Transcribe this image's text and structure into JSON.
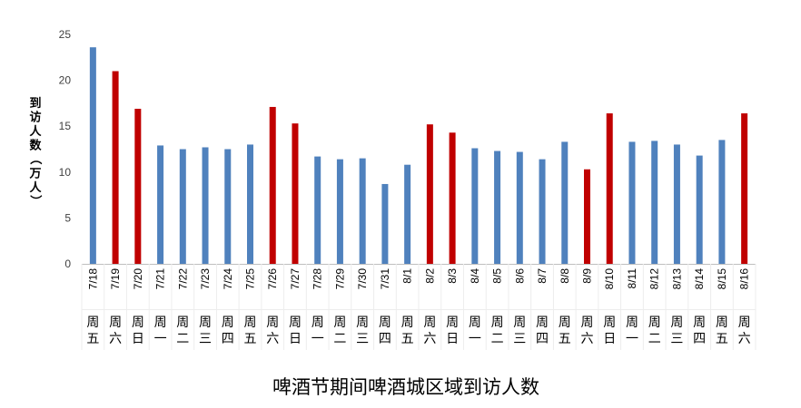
{
  "chart_data": {
    "type": "bar",
    "title": "啤酒节期间啤酒城区域到访人数",
    "ylabel": "到访人数（万人）",
    "xlabel": "",
    "ylim": [
      0,
      25
    ],
    "yticks": [
      0,
      5,
      10,
      15,
      20,
      25
    ],
    "grid": false,
    "legend": "none",
    "colors": {
      "weekday": "#4F81BD",
      "weekend": "#C00000"
    },
    "categories": [
      "7/18",
      "7/19",
      "7/20",
      "7/21",
      "7/22",
      "7/23",
      "7/24",
      "7/25",
      "7/26",
      "7/27",
      "7/28",
      "7/29",
      "7/30",
      "7/31",
      "8/1",
      "8/2",
      "8/3",
      "8/4",
      "8/5",
      "8/6",
      "8/7",
      "8/8",
      "8/9",
      "8/10",
      "8/11",
      "8/12",
      "8/13",
      "8/14",
      "8/15",
      "8/16"
    ],
    "weekdays": [
      [
        "周",
        "五"
      ],
      [
        "周",
        "六"
      ],
      [
        "周",
        "日"
      ],
      [
        "周",
        "一"
      ],
      [
        "周",
        "二"
      ],
      [
        "周",
        "三"
      ],
      [
        "周",
        "四"
      ],
      [
        "周",
        "五"
      ],
      [
        "周",
        "六"
      ],
      [
        "周",
        "日"
      ],
      [
        "周",
        "一"
      ],
      [
        "周",
        "二"
      ],
      [
        "周",
        "三"
      ],
      [
        "周",
        "四"
      ],
      [
        "周",
        "五"
      ],
      [
        "周",
        "六"
      ],
      [
        "周",
        "日"
      ],
      [
        "周",
        "一"
      ],
      [
        "周",
        "二"
      ],
      [
        "周",
        "三"
      ],
      [
        "周",
        "四"
      ],
      [
        "周",
        "五"
      ],
      [
        "周",
        "六"
      ],
      [
        "周",
        "日"
      ],
      [
        "周",
        "一"
      ],
      [
        "周",
        "二"
      ],
      [
        "周",
        "三"
      ],
      [
        "周",
        "四"
      ],
      [
        "周",
        "五"
      ],
      [
        "周",
        "六"
      ]
    ],
    "values": [
      23.6,
      21.0,
      16.9,
      12.9,
      12.5,
      12.7,
      12.5,
      13.0,
      17.1,
      15.3,
      11.7,
      11.4,
      11.5,
      8.7,
      10.8,
      15.2,
      14.3,
      12.6,
      12.3,
      12.2,
      11.4,
      13.3,
      10.3,
      16.4,
      13.3,
      13.4,
      13.0,
      11.8,
      13.5,
      16.4
    ],
    "weekend": [
      false,
      true,
      true,
      false,
      false,
      false,
      false,
      false,
      true,
      true,
      false,
      false,
      false,
      false,
      false,
      true,
      true,
      false,
      false,
      false,
      false,
      false,
      true,
      true,
      false,
      false,
      false,
      false,
      false,
      true
    ]
  }
}
